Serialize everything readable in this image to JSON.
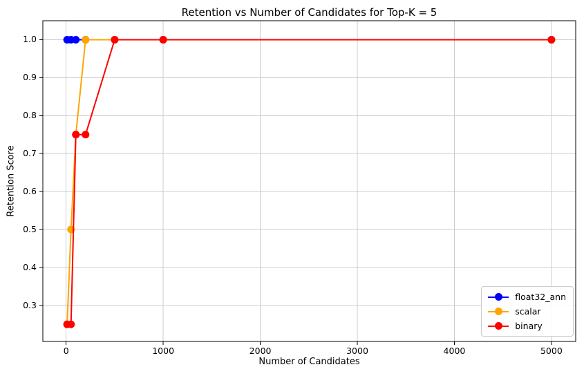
{
  "chart_data": {
    "type": "line",
    "title": "Retention vs Number of Candidates for Top-K = 5",
    "xlabel": "Number of Candidates",
    "ylabel": "Retention Score",
    "x": [
      10,
      50,
      100,
      200,
      500,
      1000,
      5000
    ],
    "series": [
      {
        "name": "float32_ann",
        "color": "#0000ff",
        "values": [
          1.0,
          1.0,
          1.0,
          1.0,
          1.0,
          1.0,
          1.0
        ]
      },
      {
        "name": "scalar",
        "color": "#ffa500",
        "values": [
          0.25,
          0.5,
          0.75,
          1.0,
          1.0,
          1.0,
          1.0
        ]
      },
      {
        "name": "binary",
        "color": "#ff0000",
        "values": [
          0.25,
          0.25,
          0.75,
          0.75,
          1.0,
          1.0,
          1.0
        ]
      }
    ],
    "xticks": [
      0,
      1000,
      2000,
      3000,
      4000,
      5000
    ],
    "yticks": [
      0.3,
      0.4,
      0.5,
      0.6,
      0.7,
      0.8,
      0.9,
      1.0
    ],
    "xlim": [
      -240,
      5250
    ],
    "ylim": [
      0.205,
      1.05
    ],
    "grid": true,
    "legend": {
      "position": "lower right",
      "entries": [
        "float32_ann",
        "scalar",
        "binary"
      ]
    },
    "colors": {
      "background": "#ffffff",
      "grid": "#cccccc",
      "axis": "#000000",
      "text": "#000000",
      "legend_border": "#cccccc"
    }
  }
}
